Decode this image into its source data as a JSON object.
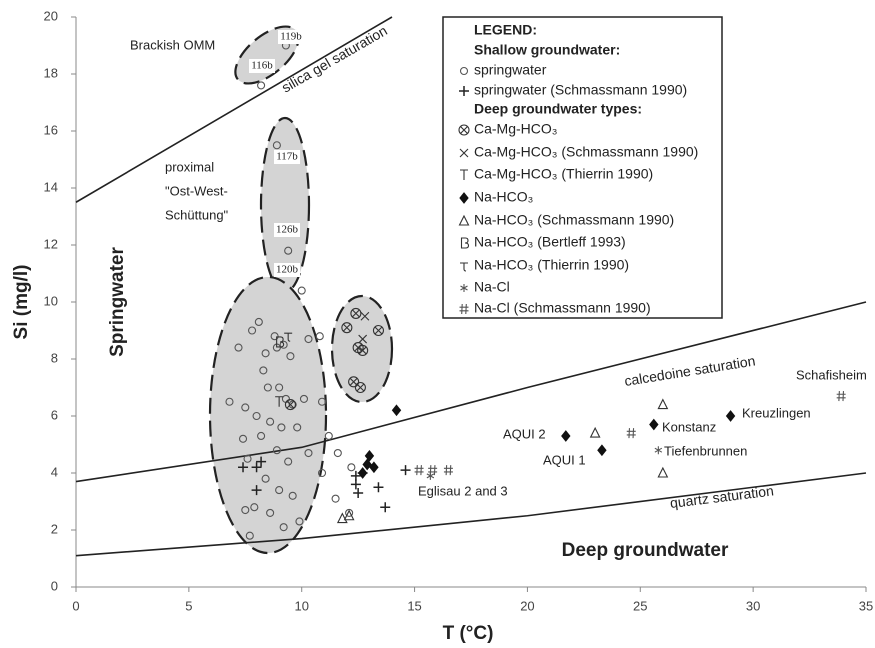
{
  "chart_data": {
    "type": "scatter",
    "x_label": "T (°C)",
    "y_label": "Si (mg/l)",
    "xlim": [
      0,
      35
    ],
    "xticks": [
      0,
      5,
      10,
      15,
      20,
      25,
      30,
      35
    ],
    "ylim": [
      0,
      20
    ],
    "yticks": [
      0,
      2,
      4,
      6,
      8,
      10,
      12,
      14,
      16,
      18,
      20
    ],
    "legend_title": "LEGEND:",
    "legend_headings": [
      "Shallow groundwater:",
      "Deep groundwater types:"
    ],
    "lines": [
      {
        "name": "silica gel saturation",
        "color": "#222222",
        "x": [
          0,
          14
        ],
        "values": [
          13.5,
          20
        ]
      },
      {
        "name": "calcedoine saturation",
        "color": "#222222",
        "x": [
          0,
          10,
          20,
          35
        ],
        "values": [
          3.7,
          4.9,
          7.0,
          10
        ]
      },
      {
        "name": "quartz saturation",
        "color": "#222222",
        "x": [
          0,
          10,
          20,
          35
        ],
        "values": [
          1.1,
          1.7,
          2.5,
          4.0
        ]
      }
    ],
    "series": [
      {
        "name": "springwater",
        "marker": "circle",
        "color": "#555555",
        "x": [
          9.3,
          8.2,
          8.9,
          9.4,
          10.0,
          7.2,
          7.5,
          6.8,
          7.8,
          8.1,
          8.4,
          8.8,
          8.9,
          9.2,
          9.5,
          10.3,
          10.8,
          8.3,
          8.5,
          9.0,
          9.3,
          9.6,
          10.1,
          10.9,
          8.0,
          8.6,
          9.1,
          9.8,
          11.2,
          7.4,
          8.2,
          8.9,
          9.4,
          10.3,
          10.9,
          7.6,
          8.4,
          9.0,
          9.6,
          11.5,
          7.9,
          8.6,
          9.2,
          9.9,
          7.5,
          7.7,
          12.1,
          11.6,
          12.2
        ],
        "values": [
          19.0,
          17.6,
          15.5,
          11.8,
          10.4,
          8.4,
          6.3,
          6.5,
          9.0,
          9.3,
          8.2,
          8.8,
          8.4,
          8.5,
          8.1,
          8.7,
          8.8,
          7.6,
          7.0,
          7.0,
          6.6,
          6.4,
          6.6,
          6.5,
          6.0,
          5.8,
          5.6,
          5.6,
          5.3,
          5.2,
          5.3,
          4.8,
          4.4,
          4.7,
          4.0,
          4.5,
          3.8,
          3.4,
          3.2,
          3.1,
          2.8,
          2.6,
          2.1,
          2.3,
          2.7,
          1.8,
          2.6,
          4.7,
          4.2
        ]
      },
      {
        "name": "springwater (Schmassmann 1990)",
        "marker": "plus",
        "color": "#222222",
        "x": [
          7.4,
          8.0,
          8.2,
          8.0,
          12.4,
          12.4,
          12.5,
          13.4,
          14.6,
          13.7,
          12.7
        ],
        "values": [
          4.2,
          4.2,
          4.4,
          3.4,
          3.6,
          3.9,
          3.3,
          3.5,
          4.1,
          2.8,
          4.0
        ]
      },
      {
        "name": "Ca-Mg-HCO₃",
        "marker": "circlex",
        "color": "#333333",
        "x": [
          12.0,
          12.4,
          12.5,
          13.4,
          12.7,
          12.3,
          12.6,
          9.5
        ],
        "values": [
          9.1,
          9.6,
          8.4,
          9.0,
          8.3,
          7.2,
          7.0,
          6.4
        ]
      },
      {
        "name": "Ca-Mg-HCO₃ (Schmassmann 1990)",
        "marker": "cross",
        "color": "#333333",
        "x": [
          12.8,
          12.7
        ],
        "values": [
          9.5,
          8.7
        ]
      },
      {
        "name": "Ca-Mg-HCO₃ (Thierrin 1990)",
        "marker": "tee",
        "color": "#333333",
        "x": [
          9.0
        ],
        "values": [
          6.5
        ]
      },
      {
        "name": "Na-HCO₃",
        "marker": "diamond",
        "color": "#111111",
        "x": [
          14.2,
          13.0,
          12.9,
          13.2,
          12.7,
          21.7,
          23.3,
          25.6,
          29.0
        ],
        "values": [
          6.2,
          4.6,
          4.3,
          4.2,
          4.0,
          5.3,
          4.8,
          5.7,
          6.0
        ]
      },
      {
        "name": "Na-HCO₃ (Schmassmann 1990)",
        "marker": "triangle",
        "color": "#333333",
        "x": [
          23.0,
          26.0,
          26.0,
          12.1,
          11.8
        ],
        "values": [
          5.4,
          6.4,
          4.0,
          2.5,
          2.4
        ]
      },
      {
        "name": "Na-HCO₃ (Bertleff 1993)",
        "marker": "bee",
        "color": "#333333",
        "x": [
          9.0
        ],
        "values": [
          8.6
        ]
      },
      {
        "name": "Na-HCO₃ (Thierrin 1990)",
        "marker": "tau",
        "color": "#333333",
        "x": [
          9.4
        ],
        "values": [
          8.8
        ]
      },
      {
        "name": "Na-Cl",
        "marker": "star",
        "color": "#555555",
        "x": [
          15.7,
          25.8
        ],
        "values": [
          3.9,
          4.8
        ]
      },
      {
        "name": "Na-Cl (Schmassmann 1990)",
        "marker": "hash",
        "color": "#555555",
        "x": [
          15.2,
          15.8,
          16.5,
          24.6,
          33.9
        ],
        "values": [
          4.1,
          4.1,
          4.1,
          5.4,
          6.7
        ]
      }
    ],
    "annotations": [
      "Brackish OMM",
      "proximal",
      "\"Ost-West-",
      "Schüttung\"",
      "Springwater",
      "Deep groundwater",
      "Schafisheim",
      "Kreuzlingen",
      "Konstanz",
      "Tiefenbrunnen",
      "AQUI 2",
      "AQUI 1",
      "Eglisau 2 and 3",
      "119b",
      "116b",
      "117b",
      "126b",
      "120b"
    ]
  }
}
